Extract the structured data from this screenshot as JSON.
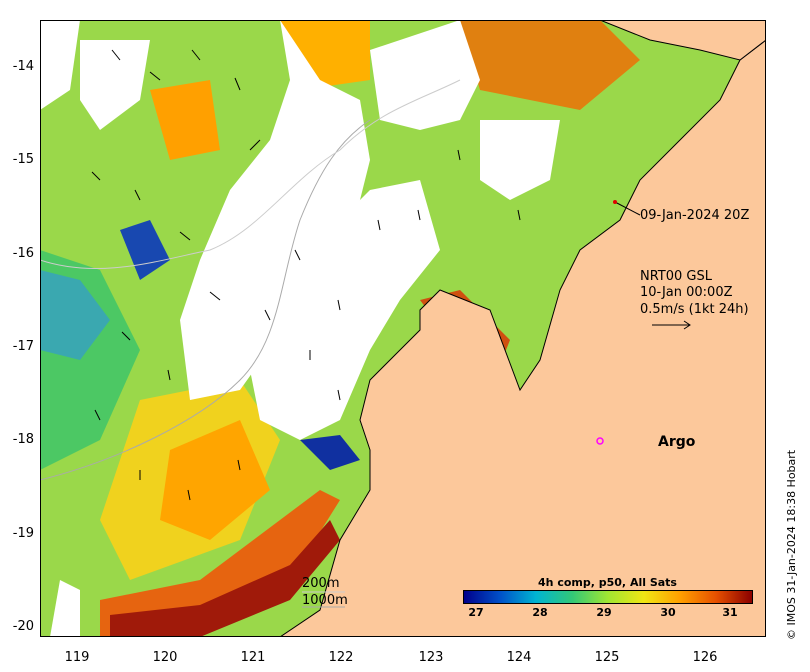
{
  "map": {
    "y_ticks": [
      "-14",
      "-15",
      "-16",
      "-17",
      "-18",
      "-19",
      "-20"
    ],
    "x_ticks": [
      "119",
      "120",
      "121",
      "122",
      "123",
      "124",
      "125",
      "126"
    ],
    "colors": {
      "land": "#fcc89b",
      "cloud": "#ffffff",
      "coast": "#000000"
    }
  },
  "annotations": {
    "timestamp": "09-Jan-2024 20Z",
    "current_source": "NRT00 GSL",
    "current_time": "10-Jan 00:00Z",
    "scale_label": "0.5m/s (1kt 24h)",
    "argo_label": "Argo",
    "isobath_200": "200m",
    "isobath_1000": "1000m"
  },
  "colorbar": {
    "title": "4h comp, p50, All Sats",
    "ticks": [
      "27",
      "28",
      "29",
      "30",
      "31"
    ],
    "gradient": [
      "#00008b",
      "#0050c8",
      "#00b4d2",
      "#32c878",
      "#a0e632",
      "#f0e614",
      "#ffa000",
      "#e65000",
      "#8b0000"
    ]
  },
  "credit": "© IMOS 31-Jan-2024 18:38 Hobart"
}
